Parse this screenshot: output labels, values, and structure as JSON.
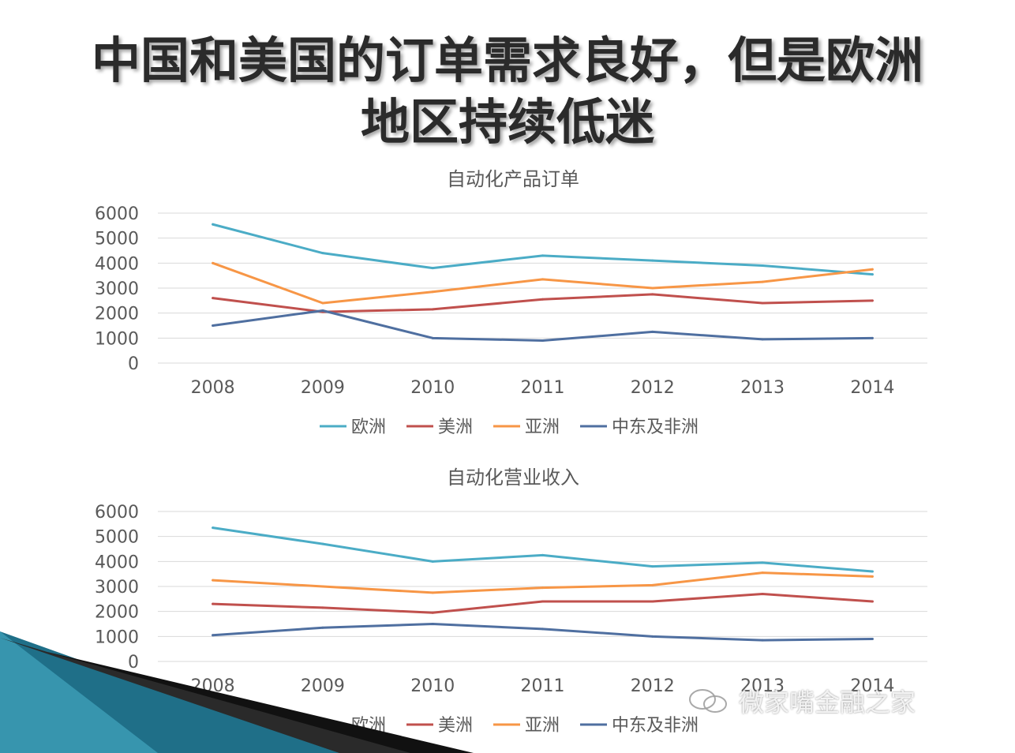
{
  "title_line1": "中国和美国的订单需求良好，但是欧洲",
  "title_line2": "地区持续低迷",
  "colors": {
    "欧洲": "#4bacc6",
    "美洲": "#c0504d",
    "亚洲": "#f79646",
    "中东及非洲": "#4f6fa0"
  },
  "watermark": "微家嘴金融之家",
  "chart_data": [
    {
      "type": "line",
      "title": "自动化产品订单",
      "categories": [
        "2008",
        "2009",
        "2010",
        "2011",
        "2012",
        "2013",
        "2014"
      ],
      "ylim": [
        0,
        6000
      ],
      "yticks": [
        0,
        1000,
        2000,
        3000,
        4000,
        5000,
        6000
      ],
      "grid": true,
      "legend": "bottom",
      "series": [
        {
          "name": "欧洲",
          "values": [
            5550,
            4400,
            3800,
            4300,
            4100,
            3900,
            3550
          ]
        },
        {
          "name": "美洲",
          "values": [
            2600,
            2050,
            2150,
            2550,
            2750,
            2400,
            2500
          ]
        },
        {
          "name": "亚洲",
          "values": [
            4000,
            2400,
            2850,
            3350,
            3000,
            3250,
            3750
          ]
        },
        {
          "name": "中东及非洲",
          "values": [
            1500,
            2100,
            1000,
            900,
            1250,
            950,
            1000
          ]
        }
      ]
    },
    {
      "type": "line",
      "title": "自动化营业收入",
      "categories": [
        "2008",
        "2009",
        "2010",
        "2011",
        "2012",
        "2013",
        "2014"
      ],
      "ylim": [
        0,
        6000
      ],
      "yticks": [
        0,
        1000,
        2000,
        3000,
        4000,
        5000,
        6000
      ],
      "grid": true,
      "legend": "bottom",
      "series": [
        {
          "name": "欧洲",
          "values": [
            5350,
            4700,
            4000,
            4250,
            3800,
            3950,
            3600
          ]
        },
        {
          "name": "美洲",
          "values": [
            2300,
            2150,
            1950,
            2400,
            2400,
            2700,
            2400
          ]
        },
        {
          "name": "亚洲",
          "values": [
            3250,
            3000,
            2750,
            2950,
            3050,
            3550,
            3400
          ]
        },
        {
          "name": "中东及非洲",
          "values": [
            1050,
            1350,
            1500,
            1300,
            1000,
            850,
            900
          ]
        }
      ]
    }
  ]
}
